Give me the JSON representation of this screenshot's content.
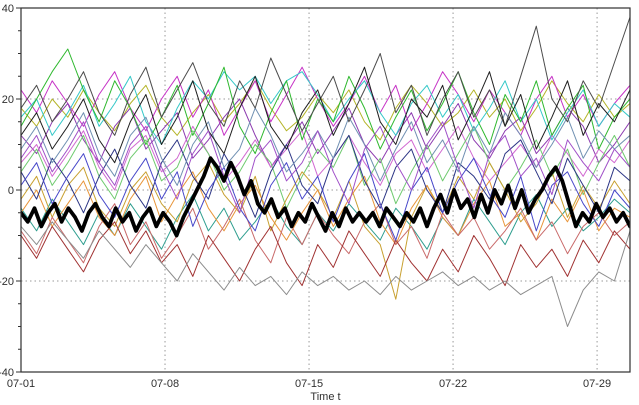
{
  "figure": {
    "background": "#ffffff",
    "axis_color": "#303030",
    "grid_color": "#9a9a9a",
    "tick_label_color": "#303030"
  },
  "chart_data": {
    "type": "line",
    "title": "",
    "xlabel": "Time t",
    "ylabel": "",
    "legend": "none",
    "grid": "dotted",
    "x_domain_days": [
      0,
      29.6
    ],
    "ylim": [
      -40,
      40
    ],
    "y_ticks": [
      -40,
      -20,
      0,
      20,
      40
    ],
    "y_tick_labels": [
      "-40",
      "-20",
      "0",
      "20",
      "40"
    ],
    "y_minor_step": 5,
    "x_ticks": [
      {
        "day": 0,
        "label": "07-01"
      },
      {
        "day": 7,
        "label": "07-08"
      },
      {
        "day": 14,
        "label": "07-15"
      },
      {
        "day": 21,
        "label": "07-22"
      },
      {
        "day": 28,
        "label": "07-29"
      }
    ],
    "x_gridline_days": [
      7,
      14,
      21,
      28
    ],
    "y_gridline_values": [
      -20,
      0,
      20
    ],
    "highlight_series": "ensemble-mean",
    "series": [
      {
        "name": "olive",
        "color": "#b4b428",
        "width": 1,
        "values": [
          18,
          14,
          20,
          16,
          22,
          17,
          13,
          19,
          23,
          16,
          12,
          17,
          21,
          15,
          19,
          24,
          18,
          13,
          16,
          21,
          17,
          22,
          15,
          11,
          18,
          23,
          19,
          14,
          17,
          22,
          16,
          20,
          13,
          18,
          24,
          19,
          15,
          21,
          16,
          19
        ]
      },
      {
        "name": "magenta",
        "color": "#c633c6",
        "width": 1,
        "values": [
          22,
          17,
          24,
          19,
          14,
          21,
          26,
          18,
          13,
          20,
          25,
          16,
          22,
          12,
          18,
          24,
          15,
          21,
          27,
          20,
          14,
          19,
          25,
          17,
          23,
          13,
          19,
          26,
          21,
          15,
          22,
          17,
          12,
          20,
          25,
          16,
          21,
          14,
          19,
          23
        ]
      },
      {
        "name": "purple",
        "color": "#8d3bb0",
        "width": 1,
        "values": [
          12,
          8,
          15,
          19,
          11,
          6,
          14,
          18,
          9,
          13,
          17,
          7,
          11,
          16,
          20,
          12,
          5,
          10,
          15,
          8,
          13,
          18,
          10,
          6,
          12,
          17,
          9,
          14,
          19,
          11,
          7,
          13,
          16,
          8,
          12,
          18,
          14,
          6,
          10,
          15
        ]
      },
      {
        "name": "orchid",
        "color": "#d169d1",
        "width": 1,
        "values": [
          6,
          10,
          3,
          8,
          13,
          5,
          0,
          9,
          12,
          4,
          7,
          14,
          8,
          2,
          6,
          11,
          5,
          9,
          13,
          3,
          7,
          12,
          6,
          1,
          8,
          11,
          4,
          9,
          14,
          7,
          2,
          6,
          10,
          5,
          12,
          8,
          3,
          9,
          6,
          11
        ]
      },
      {
        "name": "cyan",
        "color": "#35c8c8",
        "width": 1,
        "values": [
          16,
          20,
          12,
          17,
          23,
          14,
          19,
          25,
          15,
          10,
          18,
          24,
          20,
          26,
          22,
          25,
          19,
          24,
          26,
          21,
          15,
          20,
          24,
          17,
          12,
          19,
          23,
          16,
          21,
          13,
          18,
          24,
          15,
          20,
          11,
          17,
          22,
          14,
          19,
          16
        ]
      },
      {
        "name": "teal",
        "color": "#2f9e8f",
        "width": 1,
        "values": [
          -4,
          -9,
          -2,
          -7,
          -12,
          -5,
          -10,
          -3,
          -8,
          -13,
          -6,
          -1,
          -9,
          -4,
          -11,
          -7,
          -2,
          -8,
          -12,
          -5,
          -9,
          -3,
          -7,
          -11,
          -4,
          -8,
          -13,
          -6,
          -10,
          -2,
          -7,
          -12,
          -5,
          -1,
          -8,
          -4,
          -9,
          -6,
          -2,
          -5
        ]
      },
      {
        "name": "green",
        "color": "#2eb82e",
        "width": 1,
        "values": [
          14,
          20,
          26,
          31,
          22,
          15,
          24,
          18,
          10,
          16,
          23,
          12,
          19,
          27,
          14,
          8,
          17,
          24,
          11,
          20,
          15,
          25,
          18,
          9,
          16,
          22,
          13,
          19,
          26,
          17,
          10,
          21,
          15,
          24,
          12,
          18,
          23,
          9,
          16,
          20
        ]
      },
      {
        "name": "light-green",
        "color": "#6fca6f",
        "width": 1,
        "values": [
          4,
          9,
          1,
          6,
          12,
          3,
          -2,
          7,
          11,
          2,
          5,
          13,
          8,
          0,
          4,
          10,
          6,
          -4,
          3,
          9,
          5,
          12,
          1,
          7,
          -3,
          4,
          10,
          2,
          8,
          14,
          6,
          0,
          5,
          11,
          3,
          9,
          -1,
          6,
          12,
          5
        ]
      },
      {
        "name": "gold",
        "color": "#c8a030",
        "width": 1,
        "values": [
          -2,
          3,
          -6,
          1,
          5,
          -4,
          -8,
          0,
          4,
          -3,
          -7,
          2,
          6,
          -1,
          -5,
          3,
          -9,
          -2,
          4,
          0,
          -6,
          2,
          -8,
          -12,
          -24,
          -6,
          1,
          -5,
          3,
          -2,
          6,
          0,
          -7,
          -3,
          4,
          -6,
          1,
          -4,
          2,
          -3
        ]
      },
      {
        "name": "orange",
        "color": "#e8953a",
        "width": 1,
        "values": [
          -5,
          0,
          -8,
          -3,
          2,
          -6,
          -10,
          -2,
          3,
          -7,
          -1,
          4,
          -4,
          -9,
          -3,
          1,
          -6,
          -11,
          -5,
          0,
          -8,
          -2,
          3,
          -7,
          -12,
          -4,
          1,
          -6,
          -10,
          -3,
          2,
          -8,
          -5,
          -11,
          -2,
          -7,
          0,
          -9,
          -4,
          -6
        ]
      },
      {
        "name": "salmon",
        "color": "#c96a6a",
        "width": 1,
        "values": [
          -9,
          -14,
          -6,
          -11,
          -16,
          -8,
          -3,
          -12,
          -7,
          -15,
          -10,
          -4,
          -13,
          -8,
          -2,
          -11,
          -16,
          -6,
          -12,
          -5,
          -10,
          -14,
          -7,
          -3,
          -12,
          -8,
          -15,
          -5,
          -10,
          -6,
          -13,
          -9,
          -4,
          -11,
          -7,
          -14,
          -8,
          -5,
          -10,
          -7
        ]
      },
      {
        "name": "dark-red",
        "color": "#a03232",
        "width": 1,
        "values": [
          -10,
          -15,
          -8,
          -13,
          -18,
          -11,
          -7,
          -14,
          -9,
          -16,
          -12,
          -19,
          -10,
          -15,
          -20,
          -13,
          -8,
          -16,
          -21,
          -12,
          -17,
          -9,
          -14,
          -19,
          -11,
          -16,
          -20,
          -13,
          -18,
          -10,
          -15,
          -21,
          -12,
          -17,
          -13,
          -19,
          -11,
          -16,
          -9,
          -13
        ]
      },
      {
        "name": "navy",
        "color": "#2c3585",
        "width": 1,
        "values": [
          4,
          -2,
          7,
          2,
          -5,
          3,
          9,
          1,
          -4,
          6,
          11,
          3,
          -2,
          8,
          2,
          -6,
          4,
          10,
          1,
          -3,
          7,
          12,
          2,
          -4,
          5,
          9,
          0,
          -5,
          6,
          3,
          -2,
          8,
          11,
          4,
          -3,
          7,
          1,
          -5,
          5,
          2
        ]
      },
      {
        "name": "royal-blue",
        "color": "#4747c9",
        "width": 1,
        "values": [
          1,
          6,
          -3,
          3,
          8,
          -1,
          -6,
          2,
          7,
          -2,
          4,
          -8,
          0,
          5,
          -4,
          -9,
          1,
          6,
          -2,
          3,
          -7,
          2,
          8,
          -3,
          -11,
          0,
          5,
          -5,
          2,
          7,
          -1,
          -6,
          3,
          -9,
          1,
          4,
          -3,
          -8,
          0,
          -4
        ]
      },
      {
        "name": "steel-blue",
        "color": "#7090b2",
        "width": 1,
        "values": [
          9,
          14,
          6,
          11,
          17,
          8,
          3,
          12,
          16,
          7,
          1,
          10,
          15,
          5,
          9,
          18,
          12,
          4,
          8,
          13,
          7,
          16,
          10,
          2,
          9,
          15,
          6,
          11,
          4,
          14,
          8,
          17,
          12,
          5,
          10,
          16,
          7,
          13,
          9,
          12
        ]
      },
      {
        "name": "gray",
        "color": "#8c8c8c",
        "width": 1,
        "values": [
          -8,
          -12,
          -7,
          -11,
          -15,
          -9,
          -13,
          -17,
          -12,
          -16,
          -20,
          -14,
          -18,
          -22,
          -17,
          -21,
          -19,
          -23,
          -18,
          -21,
          -19,
          -22,
          -20,
          -23,
          -19,
          -22,
          -20,
          -18,
          -21,
          -19,
          -22,
          -20,
          -23,
          -21,
          -19,
          -30,
          -22,
          -18,
          -20,
          -9
        ]
      },
      {
        "name": "dark-gray",
        "color": "#4c4c4c",
        "width": 1,
        "values": [
          18,
          23,
          15,
          20,
          26,
          17,
          12,
          21,
          27,
          16,
          22,
          28,
          19,
          14,
          24,
          18,
          29,
          21,
          13,
          19,
          25,
          15,
          22,
          30,
          17,
          23,
          12,
          20,
          26,
          16,
          22,
          14,
          25,
          36,
          20,
          15,
          24,
          18,
          28,
          38
        ]
      },
      {
        "name": "black-thin",
        "color": "#1f1f1f",
        "width": 1,
        "values": [
          12,
          17,
          9,
          14,
          20,
          11,
          6,
          15,
          21,
          10,
          16,
          24,
          13,
          8,
          18,
          25,
          14,
          9,
          17,
          22,
          12,
          19,
          27,
          15,
          10,
          20,
          16,
          23,
          11,
          18,
          26,
          14,
          21,
          9,
          16,
          24,
          12,
          19,
          15,
          22
        ]
      },
      {
        "name": "violet",
        "color": "#a050c8",
        "width": 1,
        "values": [
          7,
          12,
          4,
          9,
          15,
          6,
          1,
          10,
          14,
          5,
          -2,
          8,
          13,
          3,
          -5,
          7,
          11,
          2,
          6,
          13,
          4,
          -3,
          9,
          14,
          6,
          0,
          10,
          15,
          5,
          -4,
          8,
          12,
          3,
          7,
          -1,
          11,
          6,
          2,
          9,
          5
        ]
      },
      {
        "name": "ensemble-mean",
        "color": "#000000",
        "width": 3.8,
        "values": [
          -5,
          -7,
          -4,
          -8,
          -5,
          -3,
          -7,
          -4,
          -6,
          -9,
          -5,
          -3,
          -6,
          -8,
          -4,
          -7,
          -5,
          -9,
          -6,
          -4,
          -8,
          -5,
          -7,
          -10,
          -6,
          -3,
          0,
          3,
          7,
          5,
          2,
          6,
          3,
          -1,
          2,
          -3,
          -5,
          -2,
          -6,
          -4,
          -8,
          -5,
          -7,
          -3,
          -6,
          -9,
          -5,
          -8,
          -4,
          -7,
          -5,
          -7,
          -5,
          -8,
          -4,
          -6,
          -8,
          -5,
          -7,
          -4,
          -8,
          -4,
          -1,
          -5,
          0,
          -4,
          -2,
          -6,
          -1,
          -5,
          0,
          -3,
          1,
          -4,
          0,
          -5,
          -2,
          0,
          3,
          5,
          2,
          -3,
          -8,
          -5,
          -7,
          -3,
          -6,
          -4,
          -7,
          -5,
          -8
        ]
      }
    ]
  }
}
